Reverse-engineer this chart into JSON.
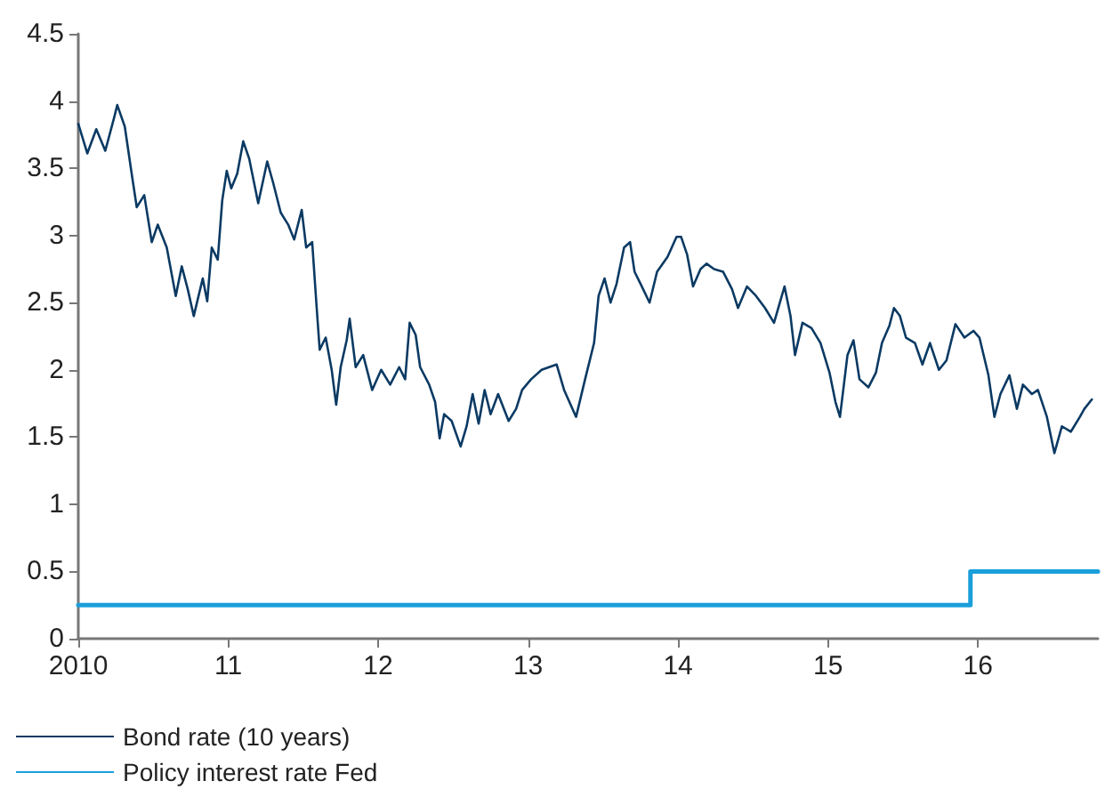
{
  "chart_data": {
    "type": "line",
    "xlim": [
      2010,
      2016.8
    ],
    "xticks": [
      {
        "value": 2010,
        "label": "2010"
      },
      {
        "value": 2011,
        "label": "11"
      },
      {
        "value": 2012,
        "label": "12"
      },
      {
        "value": 2013,
        "label": "13"
      },
      {
        "value": 2014,
        "label": "14"
      },
      {
        "value": 2015,
        "label": "15"
      },
      {
        "value": 2016,
        "label": "16"
      }
    ],
    "ylim": [
      0,
      4.5
    ],
    "yticks": [
      0,
      0.5,
      1,
      1.5,
      2,
      2.5,
      3,
      3.5,
      4,
      4.5
    ],
    "grid": false,
    "legend": "bottom left",
    "marker": "none",
    "line_style": "solid",
    "series": [
      {
        "name": "Bond rate (10 years)",
        "color": "#0b3a63",
        "x": [
          2010.0,
          2010.06,
          2010.12,
          2010.18,
          2010.24,
          2010.26,
          2010.31,
          2010.36,
          2010.39,
          2010.44,
          2010.49,
          2010.53,
          2010.59,
          2010.65,
          2010.69,
          2010.73,
          2010.77,
          2010.83,
          2010.86,
          2010.89,
          2010.93,
          2010.96,
          2010.99,
          2011.02,
          2011.06,
          2011.1,
          2011.14,
          2011.2,
          2011.26,
          2011.3,
          2011.35,
          2011.4,
          2011.44,
          2011.49,
          2011.52,
          2011.56,
          2011.59,
          2011.61,
          2011.65,
          2011.69,
          2011.72,
          2011.75,
          2011.79,
          2011.81,
          2011.85,
          2011.9,
          2011.96,
          2012.02,
          2012.08,
          2012.14,
          2012.18,
          2012.21,
          2012.25,
          2012.28,
          2012.34,
          2012.38,
          2012.41,
          2012.44,
          2012.49,
          2012.55,
          2012.59,
          2012.63,
          2012.67,
          2012.71,
          2012.75,
          2012.8,
          2012.87,
          2012.92,
          2012.96,
          2013.02,
          2013.09,
          2013.19,
          2013.24,
          2013.32,
          2013.38,
          2013.44,
          2013.47,
          2013.51,
          2013.55,
          2013.59,
          2013.64,
          2013.68,
          2013.71,
          2013.75,
          2013.81,
          2013.86,
          2013.93,
          2013.99,
          2014.02,
          2014.06,
          2014.1,
          2014.15,
          2014.19,
          2014.24,
          2014.3,
          2014.36,
          2014.4,
          2014.46,
          2014.52,
          2014.58,
          2014.64,
          2014.71,
          2014.75,
          2014.78,
          2014.83,
          2014.89,
          2014.95,
          2015.01,
          2015.05,
          2015.08,
          2015.13,
          2015.17,
          2015.21,
          2015.27,
          2015.32,
          2015.36,
          2015.41,
          2015.44,
          2015.48,
          2015.52,
          2015.58,
          2015.63,
          2015.68,
          2015.74,
          2015.79,
          2015.85,
          2015.91,
          2015.97,
          2016.01,
          2016.07,
          2016.11,
          2016.15,
          2016.21,
          2016.26,
          2016.3,
          2016.36,
          2016.4,
          2016.46,
          2016.51,
          2016.56,
          2016.62,
          2016.68,
          2016.71,
          2016.76
        ],
        "values": [
          3.83,
          3.61,
          3.79,
          3.63,
          3.88,
          3.97,
          3.81,
          3.43,
          3.21,
          3.3,
          2.95,
          3.08,
          2.91,
          2.55,
          2.77,
          2.6,
          2.4,
          2.68,
          2.51,
          2.91,
          2.82,
          3.26,
          3.48,
          3.35,
          3.46,
          3.7,
          3.57,
          3.24,
          3.55,
          3.39,
          3.17,
          3.08,
          2.97,
          3.19,
          2.91,
          2.95,
          2.46,
          2.15,
          2.24,
          2.0,
          1.74,
          2.02,
          2.22,
          2.38,
          2.02,
          2.11,
          1.85,
          2.0,
          1.89,
          2.02,
          1.93,
          2.35,
          2.26,
          2.02,
          1.89,
          1.76,
          1.49,
          1.67,
          1.62,
          1.43,
          1.58,
          1.82,
          1.6,
          1.85,
          1.67,
          1.82,
          1.62,
          1.71,
          1.85,
          1.93,
          2.0,
          2.04,
          1.85,
          1.65,
          1.93,
          2.2,
          2.55,
          2.68,
          2.5,
          2.64,
          2.91,
          2.95,
          2.73,
          2.64,
          2.5,
          2.73,
          2.84,
          2.99,
          2.99,
          2.86,
          2.62,
          2.75,
          2.79,
          2.75,
          2.73,
          2.6,
          2.46,
          2.62,
          2.55,
          2.46,
          2.35,
          2.62,
          2.4,
          2.11,
          2.35,
          2.31,
          2.2,
          1.98,
          1.76,
          1.65,
          2.11,
          2.22,
          1.93,
          1.87,
          1.98,
          2.2,
          2.33,
          2.46,
          2.4,
          2.24,
          2.2,
          2.04,
          2.2,
          2.0,
          2.07,
          2.34,
          2.24,
          2.29,
          2.24,
          1.96,
          1.65,
          1.82,
          1.96,
          1.71,
          1.89,
          1.82,
          1.85,
          1.65,
          1.38,
          1.58,
          1.54,
          1.65,
          1.71,
          1.78
        ]
      },
      {
        "name": "Policy interest rate Fed",
        "type": "step",
        "color": "#1a9fdb",
        "x": [
          2010,
          2015.95,
          2016.8
        ],
        "values": [
          0.25,
          0.5,
          0.5
        ]
      }
    ]
  }
}
